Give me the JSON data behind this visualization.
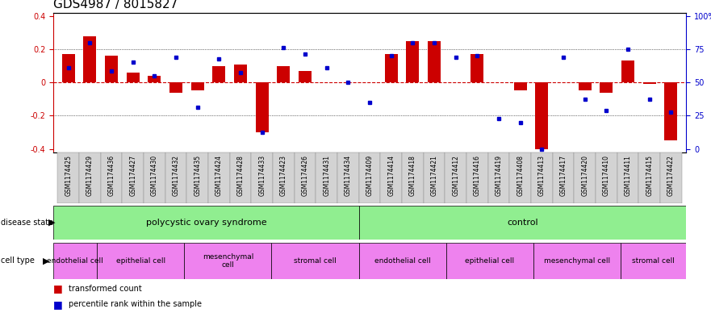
{
  "title": "GDS4987 / 8015827",
  "samples": [
    "GSM1174425",
    "GSM1174429",
    "GSM1174436",
    "GSM1174427",
    "GSM1174430",
    "GSM1174432",
    "GSM1174435",
    "GSM1174424",
    "GSM1174428",
    "GSM1174433",
    "GSM1174423",
    "GSM1174426",
    "GSM1174431",
    "GSM1174434",
    "GSM1174409",
    "GSM1174414",
    "GSM1174418",
    "GSM1174421",
    "GSM1174412",
    "GSM1174416",
    "GSM1174419",
    "GSM1174408",
    "GSM1174413",
    "GSM1174417",
    "GSM1174420",
    "GSM1174410",
    "GSM1174411",
    "GSM1174415",
    "GSM1174422"
  ],
  "bar_values": [
    0.17,
    0.28,
    0.16,
    0.06,
    0.04,
    -0.06,
    -0.05,
    0.1,
    0.11,
    -0.3,
    0.1,
    0.07,
    0.0,
    0.0,
    0.0,
    0.17,
    0.25,
    0.25,
    0.0,
    0.17,
    0.0,
    -0.05,
    -0.4,
    0.0,
    -0.05,
    -0.06,
    0.13,
    -0.01,
    -0.35
  ],
  "dot_values": [
    0.09,
    0.24,
    0.07,
    0.12,
    0.04,
    0.15,
    -0.15,
    0.14,
    0.06,
    -0.3,
    0.21,
    0.17,
    0.09,
    0.0,
    -0.12,
    0.16,
    0.24,
    0.24,
    0.15,
    0.16,
    -0.22,
    -0.24,
    -0.4,
    0.15,
    -0.1,
    -0.17,
    0.2,
    -0.1,
    -0.18
  ],
  "disease_state_groups": [
    {
      "label": "polycystic ovary syndrome",
      "start": 0,
      "end": 13
    },
    {
      "label": "control",
      "start": 14,
      "end": 28
    }
  ],
  "cell_type_groups": [
    {
      "label": "endothelial cell",
      "start": 0,
      "end": 1
    },
    {
      "label": "epithelial cell",
      "start": 2,
      "end": 5
    },
    {
      "label": "mesenchymal\ncell",
      "start": 6,
      "end": 9
    },
    {
      "label": "stromal cell",
      "start": 10,
      "end": 13
    },
    {
      "label": "endothelial cell",
      "start": 14,
      "end": 17
    },
    {
      "label": "epithelial cell",
      "start": 18,
      "end": 21
    },
    {
      "label": "mesenchymal cell",
      "start": 22,
      "end": 25
    },
    {
      "label": "stromal cell",
      "start": 26,
      "end": 28
    }
  ],
  "ylim": [
    -0.42,
    0.42
  ],
  "yticks": [
    -0.4,
    -0.2,
    0.0,
    0.2,
    0.4
  ],
  "ytick_labels_left": [
    "-0.4",
    "-0.2",
    "0",
    "0.2",
    "0.4"
  ],
  "ytick_labels_right": [
    "0",
    "25",
    "50",
    "75",
    "100%"
  ],
  "ytick_right_vals": [
    -0.4,
    -0.2,
    0.0,
    0.2,
    0.4
  ],
  "bar_color": "#CC0000",
  "dot_color": "#0000CC",
  "zero_line_color": "#CC0000",
  "ds_color": "#90EE90",
  "ct_color": "#EE82EE",
  "xtick_bg": "#D3D3D3",
  "title_fontsize": 11,
  "tick_fontsize": 7,
  "sample_fontsize": 5.5
}
